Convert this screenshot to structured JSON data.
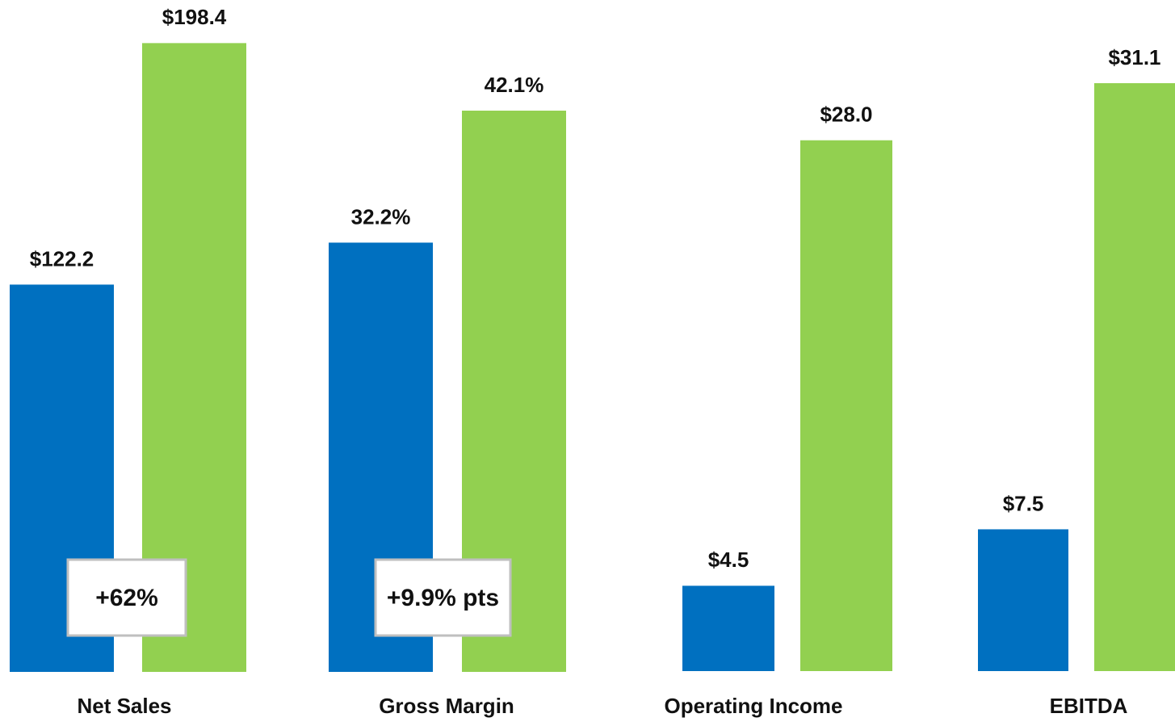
{
  "chart_data": [
    {
      "type": "bar",
      "category": "Net Sales",
      "ylim": [
        0,
        212
      ],
      "annotation": "+62%",
      "series": [
        {
          "color": "#0070c0",
          "values": [
            122.2
          ],
          "value_labels": [
            "$122.2"
          ]
        },
        {
          "color": "#92d050",
          "values": [
            198.4
          ],
          "value_labels": [
            "$198.4"
          ]
        }
      ]
    },
    {
      "type": "bar",
      "category": "Gross Margin",
      "ylim": [
        0,
        50.4
      ],
      "annotation": "+9.9% pts",
      "series": [
        {
          "color": "#0070c0",
          "values": [
            32.2
          ],
          "value_labels": [
            "32.2%"
          ]
        },
        {
          "color": "#92d050",
          "values": [
            42.1
          ],
          "value_labels": [
            "42.1%"
          ]
        }
      ]
    },
    {
      "type": "bar",
      "category": "Operating Income",
      "ylim": [
        0,
        35.4
      ],
      "series": [
        {
          "color": "#0070c0",
          "values": [
            4.5
          ],
          "value_labels": [
            "$4.5"
          ]
        },
        {
          "color": "#92d050",
          "values": [
            28.0
          ],
          "value_labels": [
            "$28.0"
          ]
        }
      ]
    },
    {
      "type": "bar",
      "category": "EBITDA",
      "ylim": [
        0,
        35.5
      ],
      "series": [
        {
          "color": "#0070c0",
          "values": [
            7.5
          ],
          "value_labels": [
            "$7.5"
          ]
        },
        {
          "color": "#92d050",
          "values": [
            31.1
          ],
          "value_labels": [
            "$31.1"
          ]
        }
      ]
    }
  ]
}
